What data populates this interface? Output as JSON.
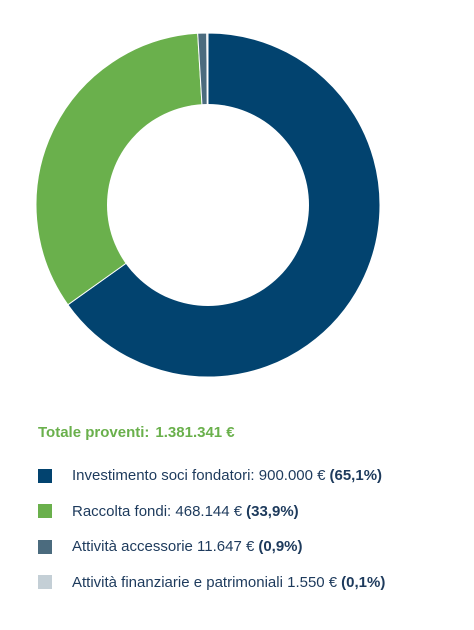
{
  "chart_data": {
    "type": "pie",
    "variant": "donut",
    "total_label": "Totale proventi:",
    "total_value": "1.381.341 €",
    "series": [
      {
        "label": "Investimento soci fondatori: 900.000 €",
        "value": 900000,
        "percent": 65.1,
        "percent_label": "(65,1%)",
        "color": "#02436f"
      },
      {
        "label": "Raccolta fondi: 468.144 €",
        "value": 468144,
        "percent": 33.9,
        "percent_label": "(33,9%)",
        "color": "#6ab04c"
      },
      {
        "label": "Attività accessorie 11.647 €",
        "value": 11647,
        "percent": 0.9,
        "percent_label": "(0,9%)",
        "color": "#4b6b7e"
      },
      {
        "label": "Attività finanziarie e patrimoniali 1.550 €",
        "value": 1550,
        "percent": 0.1,
        "percent_label": "(0,1%)",
        "color": "#c4cfd6"
      }
    ]
  }
}
